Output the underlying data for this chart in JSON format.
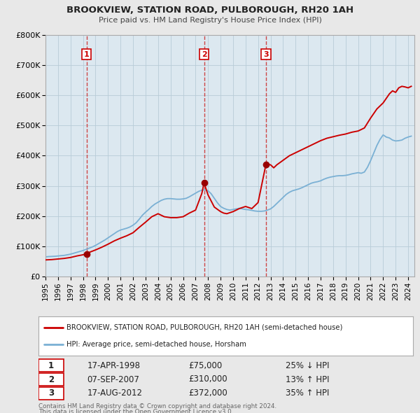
{
  "title": "BROOKVIEW, STATION ROAD, PULBOROUGH, RH20 1AH",
  "subtitle": "Price paid vs. HM Land Registry's House Price Index (HPI)",
  "ylim": [
    0,
    800000
  ],
  "yticks": [
    0,
    100000,
    200000,
    300000,
    400000,
    500000,
    600000,
    700000,
    800000
  ],
  "ytick_labels": [
    "£0",
    "£100K",
    "£200K",
    "£300K",
    "£400K",
    "£500K",
    "£600K",
    "£700K",
    "£800K"
  ],
  "xlim_start": 1995.0,
  "xlim_end": 2024.5,
  "bg_color": "#e8e8e8",
  "plot_bg_color": "#dce8f0",
  "grid_color": "#b8ccd8",
  "red_line_color": "#cc0000",
  "blue_line_color": "#7ab0d4",
  "sale_marker_color": "#990000",
  "dashed_line_color": "#cc3333",
  "sales": [
    {
      "num": 1,
      "year": 1998.29,
      "price": 75000
    },
    {
      "num": 2,
      "year": 2007.68,
      "price": 310000
    },
    {
      "num": 3,
      "year": 2012.63,
      "price": 372000
    }
  ],
  "legend_line1": "BROOKVIEW, STATION ROAD, PULBOROUGH, RH20 1AH (semi-detached house)",
  "legend_line2": "HPI: Average price, semi-detached house, Horsham",
  "footer1": "Contains HM Land Registry data © Crown copyright and database right 2024.",
  "footer2": "This data is licensed under the Open Government Licence v3.0.",
  "table_rows": [
    [
      "1",
      "17-APR-1998",
      "£75,000",
      "25% ↓ HPI"
    ],
    [
      "2",
      "07-SEP-2007",
      "£310,000",
      "13% ↑ HPI"
    ],
    [
      "3",
      "17-AUG-2012",
      "£372,000",
      "35% ↑ HPI"
    ]
  ],
  "hpi_data_x": [
    1995.0,
    1995.25,
    1995.5,
    1995.75,
    1996.0,
    1996.25,
    1996.5,
    1996.75,
    1997.0,
    1997.25,
    1997.5,
    1997.75,
    1998.0,
    1998.25,
    1998.5,
    1998.75,
    1999.0,
    1999.25,
    1999.5,
    1999.75,
    2000.0,
    2000.25,
    2000.5,
    2000.75,
    2001.0,
    2001.25,
    2001.5,
    2001.75,
    2002.0,
    2002.25,
    2002.5,
    2002.75,
    2003.0,
    2003.25,
    2003.5,
    2003.75,
    2004.0,
    2004.25,
    2004.5,
    2004.75,
    2005.0,
    2005.25,
    2005.5,
    2005.75,
    2006.0,
    2006.25,
    2006.5,
    2006.75,
    2007.0,
    2007.25,
    2007.5,
    2007.75,
    2008.0,
    2008.25,
    2008.5,
    2008.75,
    2009.0,
    2009.25,
    2009.5,
    2009.75,
    2010.0,
    2010.25,
    2010.5,
    2010.75,
    2011.0,
    2011.25,
    2011.5,
    2011.75,
    2012.0,
    2012.25,
    2012.5,
    2012.75,
    2013.0,
    2013.25,
    2013.5,
    2013.75,
    2014.0,
    2014.25,
    2014.5,
    2014.75,
    2015.0,
    2015.25,
    2015.5,
    2015.75,
    2016.0,
    2016.25,
    2016.5,
    2016.75,
    2017.0,
    2017.25,
    2017.5,
    2017.75,
    2018.0,
    2018.25,
    2018.5,
    2018.75,
    2019.0,
    2019.25,
    2019.5,
    2019.75,
    2020.0,
    2020.25,
    2020.5,
    2020.75,
    2021.0,
    2021.25,
    2021.5,
    2021.75,
    2022.0,
    2022.25,
    2022.5,
    2022.75,
    2023.0,
    2023.25,
    2023.5,
    2023.75,
    2024.0,
    2024.25
  ],
  "hpi_data_y": [
    65000,
    66000,
    66500,
    67000,
    68000,
    69000,
    70000,
    72000,
    74000,
    77000,
    80000,
    83000,
    86000,
    90000,
    94000,
    98000,
    103000,
    109000,
    115000,
    121000,
    128000,
    135000,
    142000,
    149000,
    154000,
    157000,
    160000,
    164000,
    170000,
    178000,
    190000,
    203000,
    213000,
    222000,
    232000,
    240000,
    246000,
    252000,
    256000,
    258000,
    258000,
    257000,
    256000,
    256000,
    257000,
    259000,
    264000,
    270000,
    276000,
    282000,
    286000,
    287000,
    284000,
    274000,
    259000,
    244000,
    232000,
    226000,
    222000,
    220000,
    222000,
    224000,
    226000,
    224000,
    222000,
    221000,
    219000,
    217000,
    216000,
    216000,
    217000,
    220000,
    224000,
    232000,
    242000,
    252000,
    262000,
    272000,
    279000,
    284000,
    287000,
    290000,
    294000,
    299000,
    304000,
    309000,
    312000,
    314000,
    317000,
    322000,
    326000,
    329000,
    331000,
    333000,
    334000,
    334000,
    335000,
    337000,
    340000,
    342000,
    344000,
    342000,
    346000,
    362000,
    384000,
    409000,
    434000,
    454000,
    469000,
    462000,
    459000,
    452000,
    449000,
    450000,
    452000,
    458000,
    462000,
    465000
  ],
  "red_data_x": [
    1995.0,
    1995.5,
    1996.0,
    1996.5,
    1997.0,
    1997.5,
    1998.0,
    1998.29,
    1998.5,
    1999.0,
    1999.5,
    2000.0,
    2000.5,
    2001.0,
    2001.5,
    2002.0,
    2002.5,
    2003.0,
    2003.5,
    2004.0,
    2004.5,
    2005.0,
    2005.5,
    2006.0,
    2006.5,
    2007.0,
    2007.5,
    2007.68,
    2008.0,
    2008.5,
    2009.0,
    2009.25,
    2009.5,
    2010.0,
    2010.5,
    2011.0,
    2011.5,
    2012.0,
    2012.63,
    2013.0,
    2013.25,
    2013.5,
    2014.0,
    2014.5,
    2015.0,
    2015.25,
    2015.5,
    2016.0,
    2016.5,
    2017.0,
    2017.5,
    2018.0,
    2018.5,
    2019.0,
    2019.5,
    2020.0,
    2020.5,
    2021.0,
    2021.25,
    2021.5,
    2022.0,
    2022.25,
    2022.5,
    2022.75,
    2023.0,
    2023.25,
    2023.5,
    2023.75,
    2024.0,
    2024.25
  ],
  "red_data_y": [
    55000,
    56000,
    58000,
    60000,
    63000,
    68000,
    72000,
    75000,
    80000,
    88000,
    97000,
    107000,
    118000,
    127000,
    135000,
    145000,
    163000,
    180000,
    198000,
    208000,
    198000,
    195000,
    195000,
    198000,
    210000,
    220000,
    275000,
    310000,
    270000,
    230000,
    215000,
    210000,
    208000,
    215000,
    225000,
    232000,
    225000,
    245000,
    372000,
    370000,
    360000,
    370000,
    385000,
    400000,
    410000,
    415000,
    420000,
    430000,
    440000,
    450000,
    458000,
    463000,
    468000,
    472000,
    478000,
    482000,
    492000,
    525000,
    540000,
    555000,
    575000,
    590000,
    605000,
    615000,
    610000,
    625000,
    630000,
    628000,
    625000,
    630000
  ]
}
